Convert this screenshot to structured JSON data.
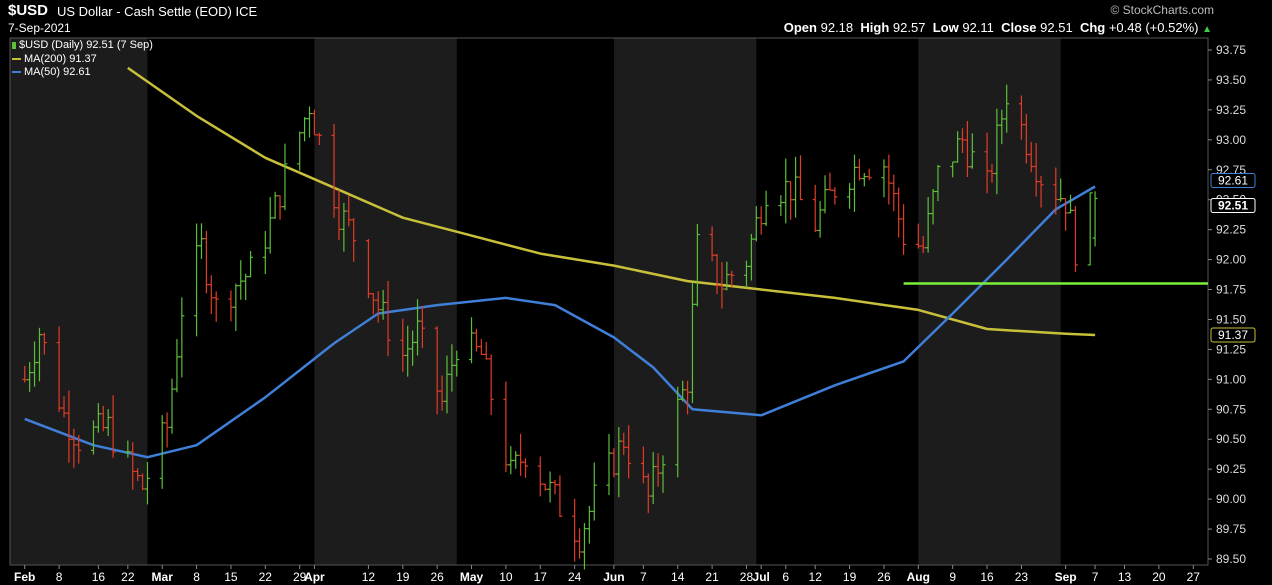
{
  "header": {
    "symbol": "$USD",
    "name": "US Dollar - Cash Settle (EOD)",
    "exchange": "ICE",
    "date": "7-Sep-2021",
    "credit": "© StockCharts.com",
    "open_label": "Open",
    "open": "92.18",
    "high_label": "High",
    "high": "92.57",
    "low_label": "Low",
    "low": "92.11",
    "close_label": "Close",
    "close": "92.51",
    "chg_label": "Chg",
    "chg": "+0.48 (+0.52%)",
    "chg_arrow": "▲"
  },
  "legend": {
    "price": "$USD (Daily) 92.51 (7 Sep)",
    "ma200": "MA(200) 91.37",
    "ma50": "MA(50) 92.61"
  },
  "colors": {
    "background": "#000000",
    "band": "#1c1c1c",
    "up_bar": "#5cbf3a",
    "down_bar": "#e03c28",
    "ma200": "#c8c03a",
    "ma50": "#3f7fd8",
    "support": "#7cf03a",
    "text": "#ffffff",
    "grid_text": "#dddddd"
  },
  "chart_data": {
    "type": "ohlc",
    "x_axis": {
      "ticks": [
        {
          "label": "Feb",
          "date": "2021-02-01",
          "bold": true
        },
        {
          "label": "8",
          "date": "2021-02-08"
        },
        {
          "label": "16",
          "date": "2021-02-16"
        },
        {
          "label": "22",
          "date": "2021-02-22"
        },
        {
          "label": "Mar",
          "date": "2021-03-01",
          "bold": true
        },
        {
          "label": "8",
          "date": "2021-03-08"
        },
        {
          "label": "15",
          "date": "2021-03-15"
        },
        {
          "label": "22",
          "date": "2021-03-22"
        },
        {
          "label": "29",
          "date": "2021-03-29"
        },
        {
          "label": "Apr",
          "date": "2021-04-01",
          "bold": true
        },
        {
          "label": "12",
          "date": "2021-04-12"
        },
        {
          "label": "19",
          "date": "2021-04-19"
        },
        {
          "label": "26",
          "date": "2021-04-26"
        },
        {
          "label": "May",
          "date": "2021-05-03",
          "bold": true
        },
        {
          "label": "10",
          "date": "2021-05-10"
        },
        {
          "label": "17",
          "date": "2021-05-17"
        },
        {
          "label": "24",
          "date": "2021-05-24"
        },
        {
          "label": "Jun",
          "date": "2021-06-01",
          "bold": true
        },
        {
          "label": "7",
          "date": "2021-06-07"
        },
        {
          "label": "14",
          "date": "2021-06-14"
        },
        {
          "label": "21",
          "date": "2021-06-21"
        },
        {
          "label": "28",
          "date": "2021-06-28"
        },
        {
          "label": "Jul",
          "date": "2021-07-01",
          "bold": true
        },
        {
          "label": "6",
          "date": "2021-07-06"
        },
        {
          "label": "12",
          "date": "2021-07-12"
        },
        {
          "label": "19",
          "date": "2021-07-19"
        },
        {
          "label": "26",
          "date": "2021-07-26"
        },
        {
          "label": "Aug",
          "date": "2021-08-02",
          "bold": true
        },
        {
          "label": "9",
          "date": "2021-08-09"
        },
        {
          "label": "16",
          "date": "2021-08-16"
        },
        {
          "label": "23",
          "date": "2021-08-23"
        },
        {
          "label": "Sep",
          "date": "2021-09-01",
          "bold": true
        },
        {
          "label": "7",
          "date": "2021-09-07"
        },
        {
          "label": "13",
          "date": "2021-09-13"
        },
        {
          "label": "20",
          "date": "2021-09-20"
        },
        {
          "label": "27",
          "date": "2021-09-27"
        }
      ],
      "month_bands": [
        {
          "start": "2021-01-29",
          "end": "2021-02-26"
        },
        {
          "start": "2021-04-01",
          "end": "2021-04-30"
        },
        {
          "start": "2021-06-01",
          "end": "2021-06-30"
        },
        {
          "start": "2021-08-02",
          "end": "2021-08-31"
        }
      ]
    },
    "y_axis": {
      "range": [
        89.45,
        93.85
      ],
      "ticks": [
        89.5,
        89.75,
        90.0,
        90.25,
        90.5,
        90.75,
        91.0,
        91.25,
        91.5,
        91.75,
        92.0,
        92.25,
        92.5,
        92.75,
        93.0,
        93.25,
        93.5,
        93.75
      ],
      "tick_labels": [
        "89.50",
        "89.75",
        "90.00",
        "90.25",
        "90.50",
        "90.75",
        "91.00",
        "91.25",
        "91.50",
        "91.75",
        "92.00",
        "92.25",
        "92.50",
        "92.75",
        "93.00",
        "93.25",
        "93.50",
        "93.75"
      ]
    },
    "price_keypoints": [
      [
        "2021-02-01",
        91.0
      ],
      [
        "2021-02-04",
        91.4
      ],
      [
        "2021-02-09",
        90.7
      ],
      [
        "2021-02-12",
        90.5
      ],
      [
        "2021-02-18",
        90.6
      ],
      [
        "2021-02-23",
        90.2
      ],
      [
        "2021-02-25",
        90.1
      ],
      [
        "2021-03-02",
        90.6
      ],
      [
        "2021-03-05",
        91.6
      ],
      [
        "2021-03-09",
        92.1
      ],
      [
        "2021-03-12",
        91.6
      ],
      [
        "2021-03-16",
        91.8
      ],
      [
        "2021-03-19",
        91.9
      ],
      [
        "2021-03-23",
        92.3
      ],
      [
        "2021-03-26",
        92.7
      ],
      [
        "2021-03-31",
        93.3
      ],
      [
        "2021-04-06",
        92.4
      ],
      [
        "2021-04-09",
        92.2
      ],
      [
        "2021-04-14",
        91.6
      ],
      [
        "2021-04-19",
        91.2
      ],
      [
        "2021-04-22",
        91.4
      ],
      [
        "2021-04-27",
        90.8
      ],
      [
        "2021-04-30",
        91.3
      ],
      [
        "2021-05-05",
        91.2
      ],
      [
        "2021-05-11",
        90.2
      ],
      [
        "2021-05-14",
        90.4
      ],
      [
        "2021-05-20",
        90.0
      ],
      [
        "2021-05-25",
        89.7
      ],
      [
        "2021-05-28",
        90.0
      ],
      [
        "2021-06-03",
        90.5
      ],
      [
        "2021-06-08",
        90.0
      ],
      [
        "2021-06-11",
        90.4
      ],
      [
        "2021-06-16",
        91.0
      ],
      [
        "2021-06-18",
        92.1
      ],
      [
        "2021-06-23",
        91.8
      ],
      [
        "2021-06-28",
        92.0
      ],
      [
        "2021-07-02",
        92.6
      ],
      [
        "2021-07-07",
        92.6
      ],
      [
        "2021-07-12",
        92.3
      ],
      [
        "2021-07-16",
        92.6
      ],
      [
        "2021-07-21",
        92.8
      ],
      [
        "2021-07-26",
        92.8
      ],
      [
        "2021-07-30",
        92.2
      ],
      [
        "2021-08-03",
        92.1
      ],
      [
        "2021-08-06",
        92.7
      ],
      [
        "2021-08-11",
        93.0
      ],
      [
        "2021-08-16",
        92.6
      ],
      [
        "2021-08-20",
        93.4
      ],
      [
        "2021-08-24",
        93.0
      ],
      [
        "2021-08-27",
        92.7
      ],
      [
        "2021-09-01",
        92.5
      ],
      [
        "2021-09-03",
        92.1
      ],
      [
        "2021-09-07",
        92.51
      ]
    ],
    "last_bar": {
      "date": "2021-09-07",
      "open": 92.18,
      "high": 92.57,
      "low": 92.11,
      "close": 92.51
    },
    "series": [
      {
        "name": "MA(200)",
        "points": [
          [
            "2021-02-22",
            93.6
          ],
          [
            "2021-03-08",
            93.2
          ],
          [
            "2021-03-22",
            92.85
          ],
          [
            "2021-04-05",
            92.6
          ],
          [
            "2021-04-19",
            92.35
          ],
          [
            "2021-05-03",
            92.2
          ],
          [
            "2021-05-17",
            92.05
          ],
          [
            "2021-06-01",
            91.95
          ],
          [
            "2021-06-16",
            91.82
          ],
          [
            "2021-07-01",
            91.75
          ],
          [
            "2021-07-16",
            91.68
          ],
          [
            "2021-08-02",
            91.58
          ],
          [
            "2021-08-16",
            91.42
          ],
          [
            "2021-09-01",
            91.38
          ],
          [
            "2021-09-07",
            91.37
          ]
        ]
      },
      {
        "name": "MA(50)",
        "points": [
          [
            "2021-02-01",
            90.67
          ],
          [
            "2021-02-15",
            90.45
          ],
          [
            "2021-02-26",
            90.35
          ],
          [
            "2021-03-08",
            90.45
          ],
          [
            "2021-03-22",
            90.85
          ],
          [
            "2021-04-05",
            91.3
          ],
          [
            "2021-04-14",
            91.55
          ],
          [
            "2021-04-26",
            91.62
          ],
          [
            "2021-05-10",
            91.68
          ],
          [
            "2021-05-20",
            91.62
          ],
          [
            "2021-06-01",
            91.35
          ],
          [
            "2021-06-09",
            91.1
          ],
          [
            "2021-06-17",
            90.75
          ],
          [
            "2021-07-01",
            90.7
          ],
          [
            "2021-07-16",
            90.95
          ],
          [
            "2021-07-30",
            91.15
          ],
          [
            "2021-08-09",
            91.55
          ],
          [
            "2021-08-20",
            92.0
          ],
          [
            "2021-08-30",
            92.42
          ],
          [
            "2021-09-07",
            92.61
          ]
        ]
      }
    ],
    "support_line": {
      "value": 91.8,
      "start": "2021-07-30",
      "end": "2021-09-30"
    },
    "price_tags": [
      {
        "label": "92.61",
        "value": 92.61,
        "kind": "ma50"
      },
      {
        "label": "92.51",
        "value": 92.51,
        "kind": "price"
      },
      {
        "label": "91.37",
        "value": 91.37,
        "kind": "ma200"
      }
    ],
    "grid": false
  }
}
